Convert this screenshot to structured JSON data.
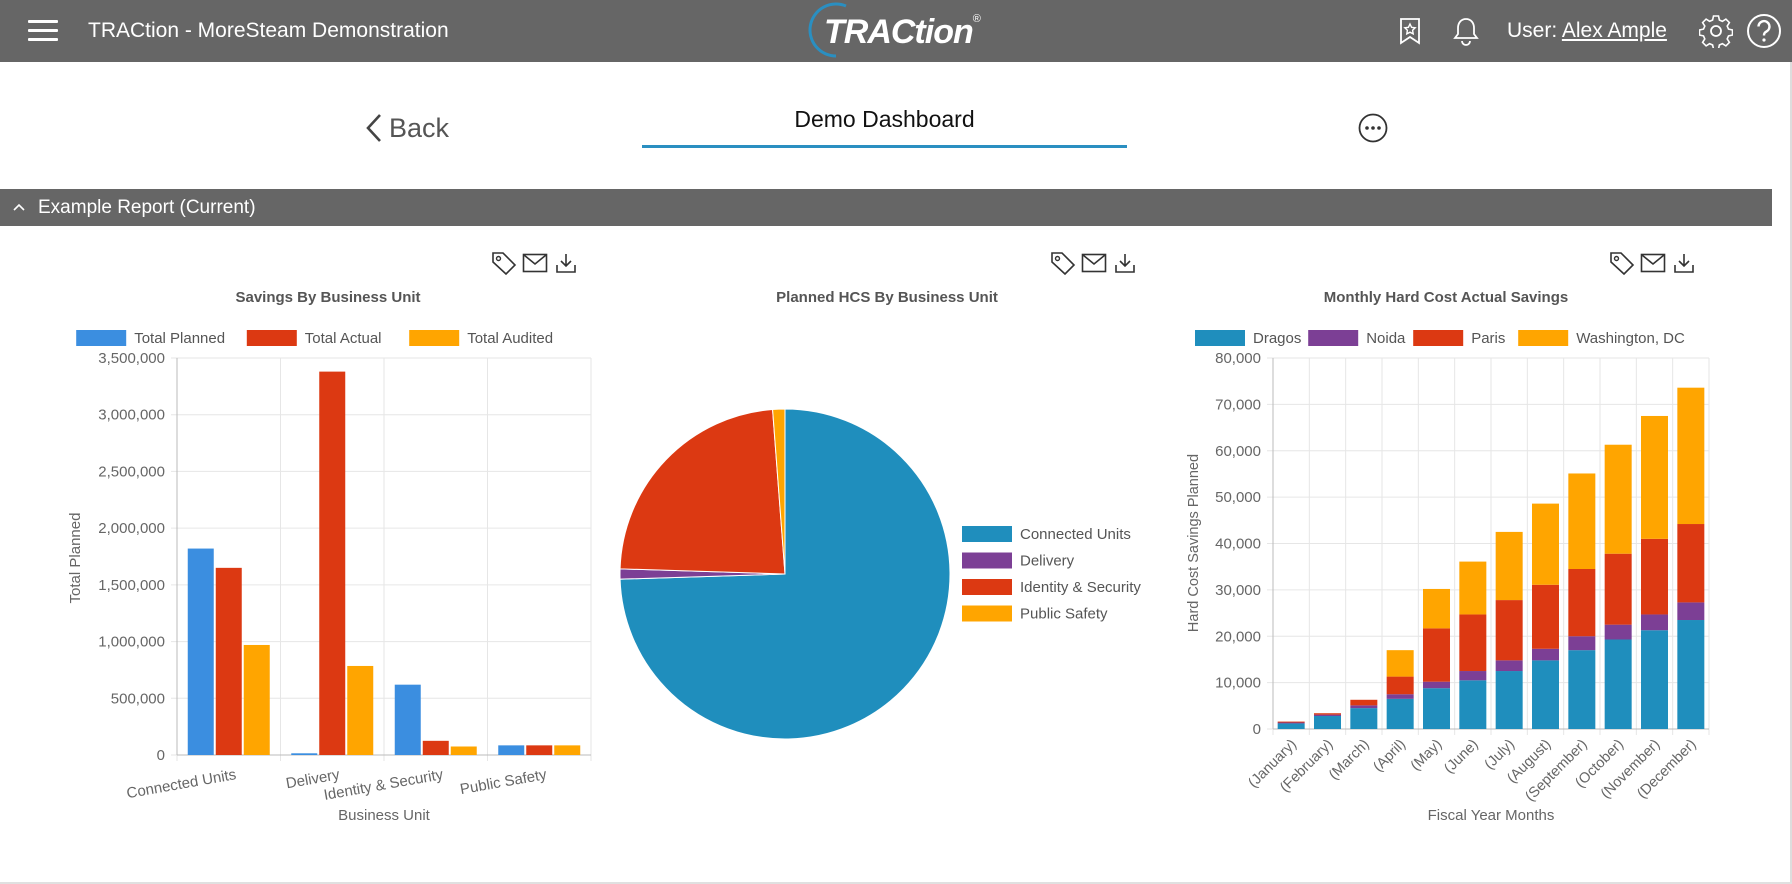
{
  "header": {
    "app_title": "TRACtion - MoreSteam Demonstration",
    "logo_text": "TRACtion",
    "logo_mark": "®",
    "user_label": "User:",
    "user_name": "Alex Ample",
    "icons": [
      "menu-icon",
      "favorites-icon",
      "bell-icon",
      "gear-icon",
      "help-icon"
    ]
  },
  "nav": {
    "back_label": "Back",
    "dashboard_title": "Demo Dashboard"
  },
  "section": {
    "title": "Example Report (Current)"
  },
  "colors": {
    "header_bg": "#666666",
    "accent": "#2a8fc1"
  },
  "chart_data": [
    {
      "type": "bar",
      "title": "Savings By Business Unit",
      "xlabel": "Business Unit",
      "ylabel": "Total Planned",
      "categories": [
        "Connected Units",
        "Delivery",
        "Identity & Security",
        "Public Safety"
      ],
      "series": [
        {
          "name": "Total Planned",
          "color": "#3b8ee0",
          "values": [
            1820000,
            15000,
            620000,
            85000
          ]
        },
        {
          "name": "Total Actual",
          "color": "#dc3912",
          "values": [
            1650000,
            3380000,
            125000,
            85000
          ]
        },
        {
          "name": "Total Audited",
          "color": "#ffa500",
          "values": [
            970000,
            785000,
            75000,
            85000
          ]
        }
      ],
      "ylim": [
        0,
        3500000
      ],
      "yticks": [
        0,
        500000,
        1000000,
        1500000,
        2000000,
        2500000,
        3000000,
        3500000
      ],
      "ytick_labels": [
        "0",
        "500,000",
        "1,000,000",
        "1,500,000",
        "2,000,000",
        "2,500,000",
        "3,000,000",
        "3,500,000"
      ],
      "legend": "top"
    },
    {
      "type": "pie",
      "title": "Planned HCS By Business Unit",
      "labels": [
        "Connected Units",
        "Delivery",
        "Identity & Security",
        "Public Safety"
      ],
      "values": [
        74.5,
        1.0,
        23.3,
        1.2
      ],
      "colors": [
        "#1f8ebd",
        "#7c3f95",
        "#dc3912",
        "#ffa500"
      ],
      "legend": "right"
    },
    {
      "type": "bar",
      "stacked": true,
      "title": "Monthly Hard Cost Actual Savings",
      "xlabel": "Fiscal Year Months",
      "ylabel": "Hard Cost Savings Planned",
      "categories": [
        "(January)",
        "(February)",
        "(March)",
        "(April)",
        "(May)",
        "(June)",
        "(July)",
        "(August)",
        "(September)",
        "(October)",
        "(November)",
        "(December)"
      ],
      "series": [
        {
          "name": "Dragos",
          "color": "#1f8ebd",
          "values": [
            1200,
            2800,
            4500,
            6500,
            8800,
            10500,
            12500,
            14800,
            17000,
            19300,
            21300,
            23500
          ]
        },
        {
          "name": "Noida",
          "color": "#7c3f95",
          "values": [
            200,
            300,
            600,
            1000,
            1400,
            2000,
            2300,
            2500,
            3000,
            3200,
            3400,
            3800
          ]
        },
        {
          "name": "Paris",
          "color": "#dc3912",
          "values": [
            200,
            300,
            1200,
            3800,
            11500,
            12200,
            13000,
            13800,
            14500,
            15300,
            16300,
            16900
          ]
        },
        {
          "name": "Washington, DC",
          "color": "#ffa500",
          "values": [
            0,
            0,
            0,
            5700,
            8500,
            11400,
            14700,
            17500,
            20600,
            23500,
            26500,
            29400
          ]
        }
      ],
      "ylim": [
        0,
        80000
      ],
      "yticks": [
        0,
        10000,
        20000,
        30000,
        40000,
        50000,
        60000,
        70000,
        80000
      ],
      "ytick_labels": [
        "0",
        "10,000",
        "20,000",
        "30,000",
        "40,000",
        "50,000",
        "60,000",
        "70,000",
        "80,000"
      ],
      "legend": "top"
    }
  ]
}
